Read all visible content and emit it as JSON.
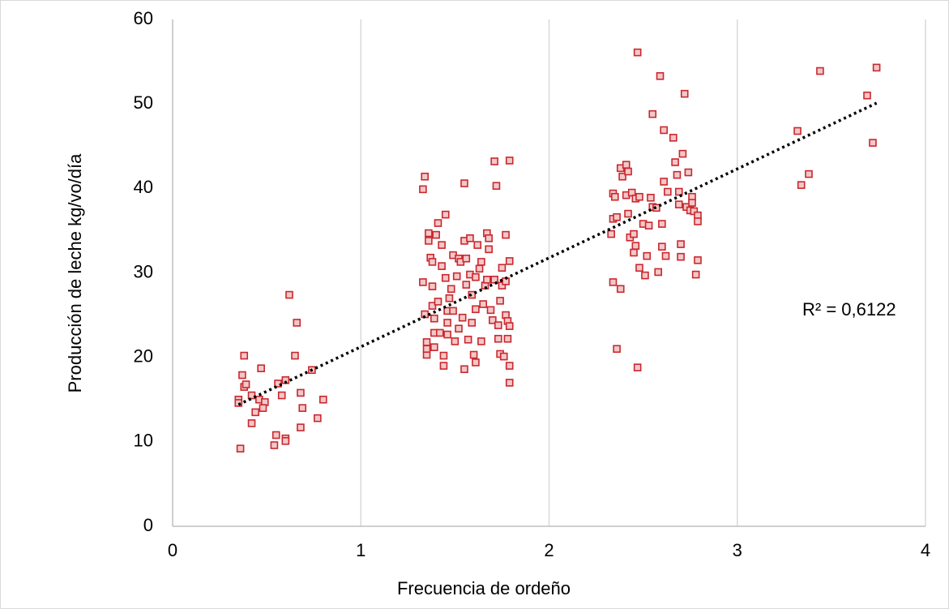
{
  "chart_data": {
    "type": "scatter",
    "xlabel": "Frecuencia de ordeño",
    "ylabel": "Producción de leche kg/vo/día",
    "annotation": "R² = 0,6122",
    "color": "#c8282e",
    "xlim": [
      0,
      4
    ],
    "xticks": [
      0,
      1,
      2,
      3,
      4
    ],
    "ylim": [
      0,
      60
    ],
    "yticks": [
      0,
      10,
      20,
      30,
      40,
      50,
      60
    ],
    "grid": true,
    "x": [
      0.35,
      0.35,
      0.36,
      0.37,
      0.38,
      0.38,
      0.39,
      0.42,
      0.42,
      0.44,
      0.46,
      0.47,
      0.49,
      0.48,
      0.54,
      0.55,
      0.56,
      0.58,
      0.6,
      0.6,
      0.6,
      0.62,
      0.65,
      0.66,
      0.68,
      0.68,
      0.69,
      0.74,
      0.77,
      0.8,
      1.33,
      1.34,
      1.33,
      1.34,
      1.35,
      1.35,
      1.35,
      1.36,
      1.36,
      1.37,
      1.38,
      1.38,
      1.38,
      1.39,
      1.39,
      1.39,
      1.4,
      1.41,
      1.41,
      1.42,
      1.43,
      1.43,
      1.44,
      1.44,
      1.45,
      1.45,
      1.46,
      1.46,
      1.46,
      1.47,
      1.48,
      1.49,
      1.49,
      1.5,
      1.51,
      1.52,
      1.52,
      1.53,
      1.54,
      1.55,
      1.55,
      1.55,
      1.56,
      1.56,
      1.57,
      1.58,
      1.58,
      1.59,
      1.59,
      1.6,
      1.61,
      1.61,
      1.61,
      1.62,
      1.63,
      1.64,
      1.64,
      1.65,
      1.66,
      1.67,
      1.67,
      1.68,
      1.68,
      1.69,
      1.7,
      1.71,
      1.71,
      1.72,
      1.73,
      1.73,
      1.74,
      1.74,
      1.75,
      1.75,
      1.76,
      1.77,
      1.77,
      1.77,
      1.78,
      1.78,
      1.79,
      1.79,
      1.79,
      1.79,
      1.79,
      2.33,
      2.34,
      2.34,
      2.34,
      2.35,
      2.36,
      2.36,
      2.38,
      2.38,
      2.39,
      2.41,
      2.41,
      2.42,
      2.42,
      2.43,
      2.44,
      2.45,
      2.45,
      2.46,
      2.46,
      2.47,
      2.47,
      2.48,
      2.48,
      2.5,
      2.51,
      2.52,
      2.53,
      2.54,
      2.55,
      2.55,
      2.57,
      2.58,
      2.59,
      2.6,
      2.6,
      2.61,
      2.61,
      2.62,
      2.63,
      2.66,
      2.67,
      2.68,
      2.69,
      2.69,
      2.7,
      2.7,
      2.71,
      2.72,
      2.73,
      2.74,
      2.75,
      2.76,
      2.76,
      2.77,
      2.78,
      2.79,
      2.79,
      2.79,
      3.32,
      3.34,
      3.38,
      3.44,
      3.69,
      3.72,
      3.74
    ],
    "values": [
      15.0,
      14.6,
      9.2,
      17.9,
      20.2,
      16.5,
      16.8,
      15.5,
      12.2,
      13.5,
      15.0,
      18.7,
      14.7,
      14.0,
      9.6,
      10.8,
      16.9,
      15.5,
      10.4,
      10.1,
      17.3,
      27.4,
      20.2,
      24.1,
      15.8,
      11.7,
      14.0,
      18.5,
      12.8,
      15.0,
      39.9,
      41.4,
      28.9,
      25.1,
      20.3,
      21.0,
      21.8,
      34.7,
      33.8,
      31.8,
      31.3,
      28.4,
      26.1,
      22.9,
      24.6,
      21.2,
      34.5,
      35.9,
      26.6,
      22.9,
      30.8,
      33.3,
      20.2,
      19.0,
      36.9,
      29.4,
      25.5,
      22.7,
      24.1,
      27.0,
      28.1,
      25.5,
      32.1,
      21.9,
      29.6,
      31.7,
      23.4,
      31.3,
      24.7,
      18.6,
      40.6,
      33.8,
      28.6,
      31.7,
      22.1,
      34.1,
      29.8,
      27.4,
      24.1,
      20.3,
      19.4,
      25.7,
      29.5,
      33.3,
      30.5,
      31.3,
      21.9,
      26.3,
      28.5,
      29.2,
      34.7,
      34.1,
      32.8,
      25.6,
      24.4,
      29.2,
      43.2,
      40.3,
      23.8,
      22.2,
      20.4,
      26.7,
      30.6,
      28.5,
      20.1,
      25.0,
      34.5,
      29.0,
      24.3,
      22.2,
      43.3,
      19.0,
      17.0,
      31.4,
      23.7,
      34.6,
      28.9,
      39.4,
      36.4,
      39.0,
      21.0,
      36.6,
      42.4,
      28.1,
      41.4,
      42.8,
      39.2,
      42.0,
      37.0,
      34.2,
      39.5,
      32.4,
      34.6,
      38.8,
      33.2,
      18.8,
      56.1,
      30.6,
      39.0,
      35.8,
      29.7,
      32.0,
      35.6,
      38.9,
      37.8,
      48.8,
      37.7,
      30.1,
      53.3,
      33.1,
      35.8,
      40.8,
      46.9,
      32.0,
      39.6,
      46.0,
      43.1,
      41.6,
      38.1,
      39.6,
      33.4,
      31.9,
      44.1,
      51.2,
      37.8,
      41.9,
      37.4,
      39.0,
      38.3,
      37.3,
      29.8,
      36.8,
      36.1,
      31.5,
      46.8,
      40.4,
      41.7,
      53.9,
      51.0,
      45.4,
      54.3
    ],
    "trendline": {
      "x": [
        0.35,
        3.74
      ],
      "values": [
        14.4,
        50.1
      ]
    }
  }
}
